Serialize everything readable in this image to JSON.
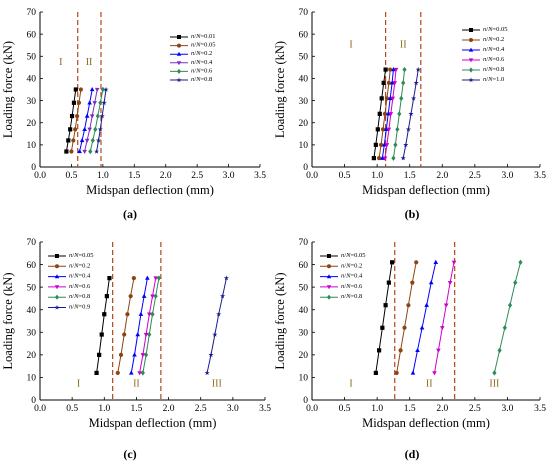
{
  "chart_data": [
    {
      "type": "line",
      "panel_label": "(a)",
      "xlabel": "Midspan deflection (mm)",
      "ylabel": "Loading force (kN)",
      "xlim": [
        0,
        3.5
      ],
      "ylim": [
        0,
        70
      ],
      "xticks": [
        "0.0",
        "0.5",
        "1.0",
        "1.5",
        "2.0",
        "2.5",
        "3.0",
        "3.5"
      ],
      "yticks": [
        "0",
        "10",
        "20",
        "30",
        "40",
        "50",
        "60",
        "70"
      ],
      "stage_lines": [
        0.6,
        0.97
      ],
      "regions": [
        {
          "label": "I",
          "x": 0.33,
          "y": 46
        },
        {
          "label": "II",
          "x": 0.78,
          "y": 46
        }
      ],
      "legend_position": "top-right",
      "series": [
        {
          "name": "n/N=0.01",
          "color": "#000000",
          "marker": "square",
          "x": [
            0.42,
            0.45,
            0.48,
            0.51,
            0.54,
            0.57
          ],
          "y": [
            7,
            12,
            17,
            23,
            29,
            35
          ]
        },
        {
          "name": "n/N=0.05",
          "color": "#8b4513",
          "marker": "circle",
          "x": [
            0.5,
            0.53,
            0.56,
            0.59,
            0.62,
            0.65
          ],
          "y": [
            7,
            12,
            17,
            23,
            29,
            35
          ]
        },
        {
          "name": "n/N=0.2",
          "color": "#0000ff",
          "marker": "triangle-up",
          "x": [
            0.63,
            0.67,
            0.71,
            0.75,
            0.79,
            0.83
          ],
          "y": [
            7,
            12,
            17,
            23,
            29,
            35
          ]
        },
        {
          "name": "n/N=0.4",
          "color": "#7b2fbe",
          "marker": "triangle-down",
          "x": [
            0.71,
            0.75,
            0.79,
            0.83,
            0.87,
            0.91
          ],
          "y": [
            7,
            12,
            17,
            23,
            29,
            35
          ]
        },
        {
          "name": "n/N=0.6",
          "color": "#2e8b57",
          "marker": "diamond",
          "x": [
            0.8,
            0.84,
            0.88,
            0.92,
            0.96,
            1.0
          ],
          "y": [
            7,
            12,
            17,
            23,
            29,
            35
          ]
        },
        {
          "name": "n/N=0.8",
          "color": "#1c1c8c",
          "marker": "star",
          "x": [
            0.9,
            0.93,
            0.96,
            0.99,
            1.02,
            1.05
          ],
          "y": [
            7,
            12,
            17,
            23,
            29,
            35
          ]
        }
      ]
    },
    {
      "type": "line",
      "panel_label": "(b)",
      "xlabel": "Midspan deflection (mm)",
      "ylabel": "Loading force (kN)",
      "xlim": [
        0,
        3.5
      ],
      "ylim": [
        0,
        70
      ],
      "xticks": [
        "0.0",
        "0.5",
        "1.0",
        "1.5",
        "2.0",
        "2.5",
        "3.0",
        "3.5"
      ],
      "yticks": [
        "0",
        "10",
        "20",
        "30",
        "40",
        "50",
        "60",
        "70"
      ],
      "stage_lines": [
        1.13,
        1.67
      ],
      "regions": [
        {
          "label": "I",
          "x": 0.6,
          "y": 54
        },
        {
          "label": "II",
          "x": 1.4,
          "y": 54
        }
      ],
      "legend_position": "top-right",
      "series": [
        {
          "name": "n/N=0.05",
          "color": "#000000",
          "marker": "square",
          "x": [
            0.95,
            0.98,
            1.01,
            1.04,
            1.07,
            1.1,
            1.13
          ],
          "y": [
            4,
            10,
            17,
            24,
            31,
            38,
            44
          ]
        },
        {
          "name": "n/N=0.2",
          "color": "#8b4513",
          "marker": "circle",
          "x": [
            1.03,
            1.06,
            1.09,
            1.12,
            1.15,
            1.18,
            1.2
          ],
          "y": [
            4,
            10,
            17,
            24,
            31,
            38,
            44
          ]
        },
        {
          "name": "n/N=0.4",
          "color": "#0000ff",
          "marker": "triangle-up",
          "x": [
            1.08,
            1.11,
            1.14,
            1.17,
            1.2,
            1.23,
            1.25
          ],
          "y": [
            4,
            10,
            17,
            24,
            31,
            38,
            44
          ]
        },
        {
          "name": "n/N=0.6",
          "color": "#cc00cc",
          "marker": "triangle-down",
          "x": [
            1.12,
            1.15,
            1.18,
            1.21,
            1.24,
            1.27,
            1.29
          ],
          "y": [
            4,
            10,
            17,
            24,
            31,
            38,
            44
          ]
        },
        {
          "name": "n/N=0.8",
          "color": "#2e8b57",
          "marker": "diamond",
          "x": [
            1.25,
            1.28,
            1.31,
            1.34,
            1.37,
            1.4,
            1.42
          ],
          "y": [
            4,
            10,
            17,
            24,
            31,
            38,
            44
          ]
        },
        {
          "name": "n/N=1.0",
          "color": "#1c1c8c",
          "marker": "star",
          "x": [
            1.4,
            1.44,
            1.48,
            1.52,
            1.56,
            1.6,
            1.63
          ],
          "y": [
            4,
            10,
            17,
            24,
            31,
            38,
            44
          ]
        }
      ]
    },
    {
      "type": "line",
      "panel_label": "(c)",
      "xlabel": "Midspan deflection (mm)",
      "ylabel": "Loading force (kN)",
      "xlim": [
        0,
        3.5
      ],
      "ylim": [
        0,
        70
      ],
      "xticks": [
        "0.0",
        "0.5",
        "1.0",
        "1.5",
        "2.0",
        "2.5",
        "3.0",
        "3.5"
      ],
      "yticks": [
        "0",
        "10",
        "20",
        "30",
        "40",
        "50",
        "60",
        "70"
      ],
      "stage_lines": [
        1.13,
        1.88
      ],
      "regions": [
        {
          "label": "I",
          "x": 0.6,
          "y": 6
        },
        {
          "label": "II",
          "x": 1.5,
          "y": 6
        },
        {
          "label": "III",
          "x": 2.75,
          "y": 6
        }
      ],
      "legend_position": "top-left",
      "series": [
        {
          "name": "n/N=0.05",
          "color": "#000000",
          "marker": "square",
          "x": [
            0.88,
            0.92,
            0.96,
            1.0,
            1.04,
            1.08
          ],
          "y": [
            12,
            20,
            29,
            38,
            46,
            54
          ]
        },
        {
          "name": "n/N=0.2",
          "color": "#8b4513",
          "marker": "circle",
          "x": [
            1.21,
            1.26,
            1.31,
            1.36,
            1.41,
            1.46
          ],
          "y": [
            12,
            20,
            29,
            38,
            46,
            54
          ]
        },
        {
          "name": "n/N=0.4",
          "color": "#0000ff",
          "marker": "triangle-up",
          "x": [
            1.42,
            1.47,
            1.52,
            1.57,
            1.62,
            1.67
          ],
          "y": [
            12,
            20,
            29,
            38,
            46,
            54
          ]
        },
        {
          "name": "n/N=0.6",
          "color": "#cc00cc",
          "marker": "triangle-down",
          "x": [
            1.55,
            1.6,
            1.65,
            1.7,
            1.75,
            1.8
          ],
          "y": [
            12,
            20,
            29,
            38,
            46,
            54
          ]
        },
        {
          "name": "n/N=0.8",
          "color": "#2e8b57",
          "marker": "diamond",
          "x": [
            1.6,
            1.65,
            1.7,
            1.75,
            1.8,
            1.85
          ],
          "y": [
            12,
            20,
            29,
            38,
            46,
            54
          ]
        },
        {
          "name": "n/N=0.9",
          "color": "#1c1c8c",
          "marker": "star",
          "x": [
            2.6,
            2.66,
            2.72,
            2.78,
            2.84,
            2.9
          ],
          "y": [
            12,
            20,
            29,
            38,
            46,
            54
          ]
        }
      ]
    },
    {
      "type": "line",
      "panel_label": "(d)",
      "xlabel": "Midspan deflection (mm)",
      "ylabel": "Loading force (kN)",
      "xlim": [
        0,
        3.5
      ],
      "ylim": [
        0,
        70
      ],
      "xticks": [
        "0.0",
        "0.5",
        "1.0",
        "1.5",
        "2.0",
        "2.5",
        "3.0",
        "3.5"
      ],
      "yticks": [
        "0",
        "10",
        "20",
        "30",
        "40",
        "50",
        "60",
        "70"
      ],
      "stage_lines": [
        1.27,
        2.19
      ],
      "regions": [
        {
          "label": "I",
          "x": 0.6,
          "y": 6
        },
        {
          "label": "II",
          "x": 1.8,
          "y": 6
        },
        {
          "label": "III",
          "x": 2.8,
          "y": 6
        }
      ],
      "legend_position": "top-left",
      "series": [
        {
          "name": "n/N=0.05",
          "color": "#000000",
          "marker": "square",
          "x": [
            0.98,
            1.03,
            1.08,
            1.13,
            1.18,
            1.23
          ],
          "y": [
            12,
            22,
            32,
            42,
            52,
            61
          ]
        },
        {
          "name": "n/N=0.2",
          "color": "#8b4513",
          "marker": "circle",
          "x": [
            1.3,
            1.36,
            1.42,
            1.48,
            1.54,
            1.6
          ],
          "y": [
            12,
            22,
            32,
            42,
            52,
            61
          ]
        },
        {
          "name": "n/N=0.4",
          "color": "#0000ff",
          "marker": "triangle-up",
          "x": [
            1.55,
            1.62,
            1.69,
            1.76,
            1.83,
            1.9
          ],
          "y": [
            12,
            22,
            32,
            42,
            52,
            61
          ]
        },
        {
          "name": "n/N=0.6",
          "color": "#cc00cc",
          "marker": "triangle-down",
          "x": [
            1.88,
            1.94,
            2.0,
            2.06,
            2.12,
            2.18
          ],
          "y": [
            12,
            22,
            32,
            42,
            52,
            61
          ]
        },
        {
          "name": "n/N=0.8",
          "color": "#2e8b57",
          "marker": "diamond",
          "x": [
            2.8,
            2.88,
            2.96,
            3.04,
            3.12,
            3.2
          ],
          "y": [
            12,
            22,
            32,
            42,
            52,
            61
          ]
        }
      ]
    }
  ]
}
